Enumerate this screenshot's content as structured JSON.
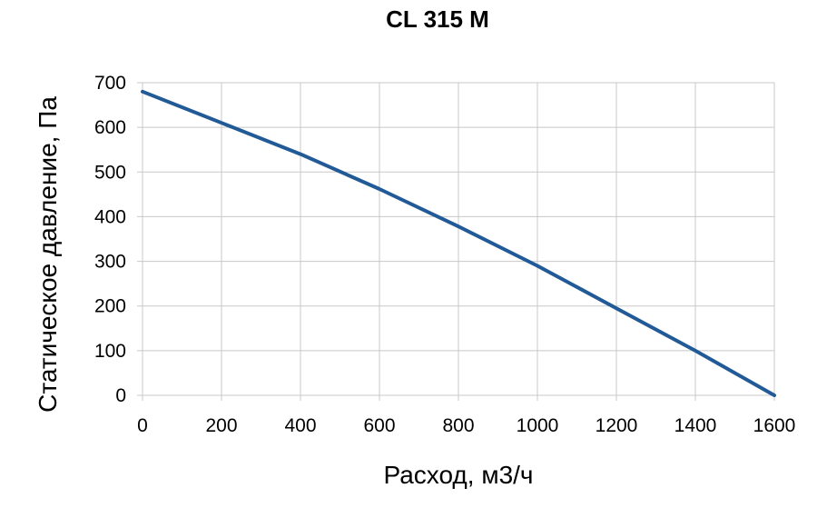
{
  "chart_data": {
    "type": "line",
    "title": "CL 315 M",
    "xlabel": "Расход, м3/ч",
    "ylabel": "Статическое давление, Па",
    "xlim": [
      0,
      1600
    ],
    "ylim": [
      0,
      700
    ],
    "x_ticks": [
      "0",
      "200",
      "400",
      "600",
      "800",
      "1000",
      "1200",
      "1400",
      "1600"
    ],
    "y_ticks": [
      "0",
      "100",
      "200",
      "300",
      "400",
      "500",
      "600",
      "700"
    ],
    "grid": true,
    "legend": "none",
    "series": [
      {
        "color": "#215a96",
        "x": [
          0,
          200,
          400,
          600,
          800,
          1000,
          1200,
          1400,
          1600
        ],
        "y": [
          680,
          610,
          540,
          462,
          378,
          290,
          195,
          100,
          0
        ]
      }
    ]
  }
}
